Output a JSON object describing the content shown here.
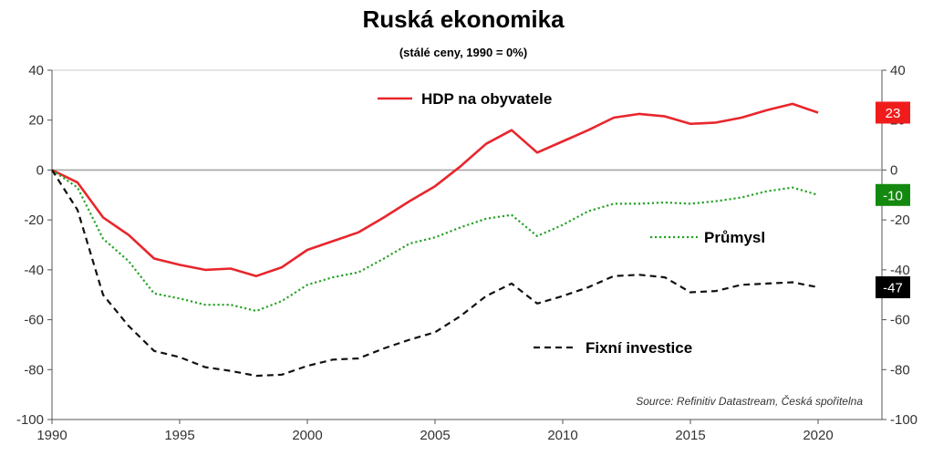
{
  "chart_data": {
    "type": "line",
    "title": "Ruská ekonomika",
    "subtitle": "(stálé ceny, 1990 = 0%)",
    "source": "Source: Refinitiv Datastream, Česká spořitelna",
    "xlim": [
      1990,
      2022.5
    ],
    "ylim": [
      -100,
      40
    ],
    "x_ticks": [
      1990,
      1995,
      2000,
      2005,
      2010,
      2015,
      2020
    ],
    "y_ticks": [
      -100,
      -80,
      -60,
      -40,
      -20,
      0,
      20,
      40
    ],
    "y_axis_both_sides": true,
    "zero_line": true,
    "grid": false,
    "x": [
      1990,
      1991,
      1992,
      1993,
      1994,
      1995,
      1996,
      1997,
      1998,
      1999,
      2000,
      2001,
      2002,
      2003,
      2004,
      2005,
      2006,
      2007,
      2008,
      2009,
      2010,
      2011,
      2012,
      2013,
      2014,
      2015,
      2016,
      2017,
      2018,
      2019,
      2020
    ],
    "series": [
      {
        "name": "HDP na obyvatele",
        "color": "#e8262c",
        "style": "solid",
        "end_label": "23",
        "values": [
          0,
          -5,
          -19,
          -26,
          -35.5,
          -38,
          -40,
          -39.5,
          -42.5,
          -39,
          -32,
          -28.5,
          -25,
          -19,
          -12.5,
          -6.5,
          1.5,
          10.5,
          16,
          7,
          11.5,
          16,
          21,
          22.5,
          21.5,
          18.5,
          19,
          21,
          24,
          26.5,
          23
        ]
      },
      {
        "name": "Průmysl",
        "color": "#26a326",
        "style": "dotted",
        "end_label": "-10",
        "values": [
          0,
          -7,
          -27.5,
          -36.5,
          -49.5,
          -51.5,
          -54,
          -54,
          -56.5,
          -52.5,
          -46,
          -43,
          -41,
          -35.5,
          -29.5,
          -27,
          -23,
          -19.5,
          -18,
          -26.5,
          -22,
          -16.5,
          -13.5,
          -13.5,
          -13,
          -13.5,
          -12.5,
          -11,
          -8.5,
          -7,
          -10
        ]
      },
      {
        "name": "Fixní investice",
        "color": "#111111",
        "style": "dashed",
        "end_label": "-47",
        "values": [
          0,
          -16,
          -50,
          -62.5,
          -72.5,
          -75,
          -79,
          -80.5,
          -82.5,
          -82,
          -78.5,
          -76,
          -75.5,
          -71.5,
          -68,
          -65,
          -58.5,
          -50.5,
          -45.5,
          -53.5,
          -50.5,
          -47,
          -42.5,
          -42,
          -43,
          -49,
          -48.5,
          -46,
          -45.5,
          -45,
          -47
        ]
      }
    ],
    "badge_colors": [
      "#f01c1c",
      "#14890f",
      "#000000"
    ]
  }
}
